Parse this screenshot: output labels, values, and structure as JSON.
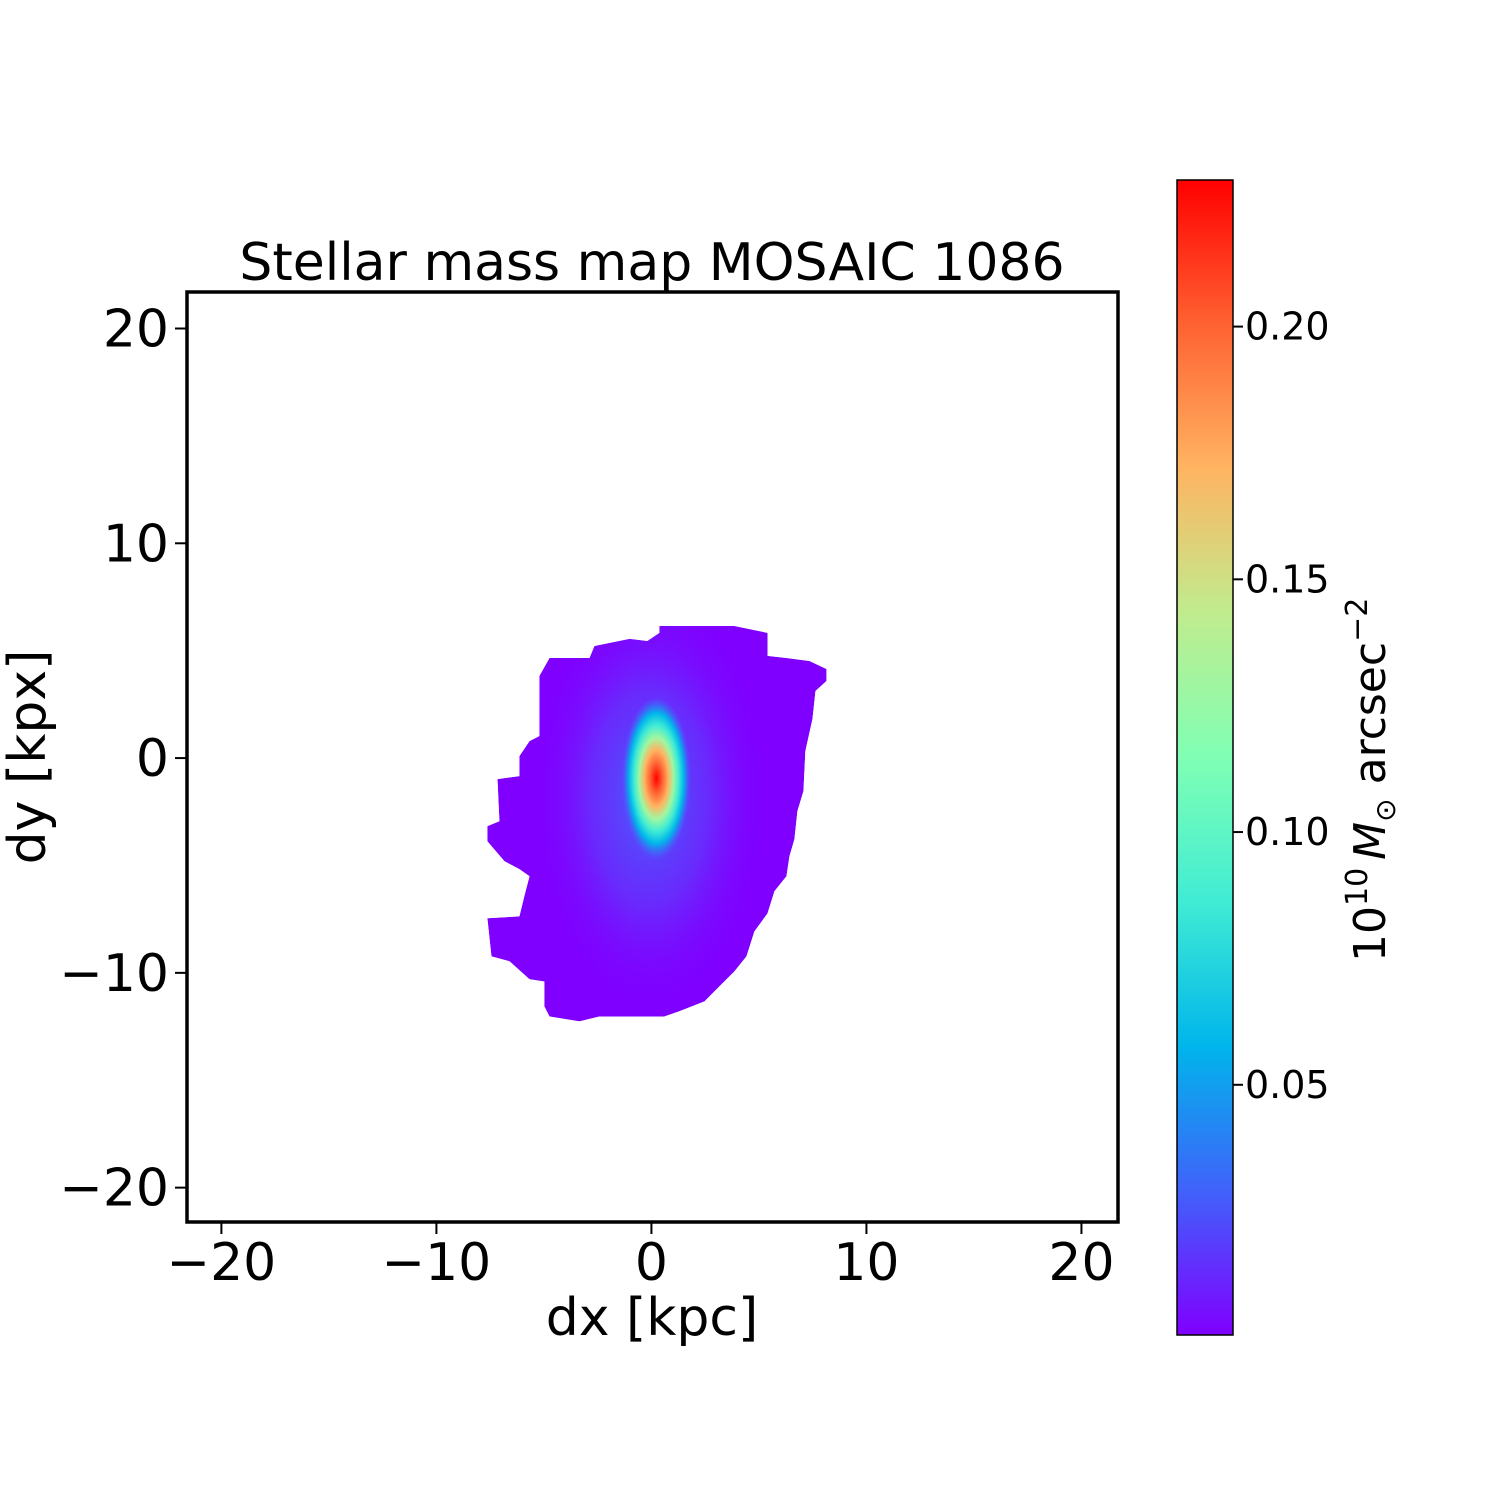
{
  "chart_data": {
    "type": "heatmap",
    "title": "Stellar mass map MOSAIC 1086",
    "xlabel": "dx [kpc]",
    "ylabel": "dy [kpx]",
    "xlim": [
      -21.6,
      21.7
    ],
    "ylim": [
      -21.6,
      21.7
    ],
    "xticks": [
      -20,
      -10,
      0,
      10,
      20
    ],
    "yticks": [
      -20,
      -10,
      0,
      10,
      20
    ],
    "xtick_labels": [
      "−20",
      "−10",
      "0",
      "10",
      "20"
    ],
    "ytick_labels": [
      "−20",
      "−10",
      "0",
      "10",
      "20"
    ],
    "colormap": "rainbow",
    "colormap_stops": [
      "#8000ff",
      "#4062fa",
      "#00b5eb",
      "#40ecd4",
      "#80ffb4",
      "#c0ec8e",
      "#ffb462",
      "#ff6232",
      "#ff0000"
    ],
    "background_color": "#ffffff",
    "colorbar": {
      "range": [
        0.0005,
        0.229
      ],
      "ticks": [
        0.05,
        0.1,
        0.15,
        0.2
      ],
      "tick_labels": [
        "0.05",
        "0.10",
        "0.15",
        "0.20"
      ],
      "label": {
        "base": "10",
        "exp1": "10",
        "unit": "M",
        "sub": "⊙",
        "rest": " arcsec",
        "exp2": "−2"
      }
    },
    "map": {
      "peak": {
        "dx": 0.23,
        "dy": -1.54,
        "value": 0.229
      },
      "min_value": 0.0005,
      "footprint_outline": [
        [
          0.37,
          6.15
        ],
        [
          3.86,
          6.15
        ],
        [
          5.4,
          5.83
        ],
        [
          5.4,
          4.76
        ],
        [
          6.28,
          4.66
        ],
        [
          7.35,
          4.52
        ],
        [
          8.14,
          4.15
        ],
        [
          8.14,
          3.59
        ],
        [
          7.63,
          3.12
        ],
        [
          7.49,
          1.82
        ],
        [
          7.16,
          0.33
        ],
        [
          7.07,
          -1.54
        ],
        [
          6.79,
          -2.47
        ],
        [
          6.65,
          -3.78
        ],
        [
          6.42,
          -4.57
        ],
        [
          6.28,
          -5.5
        ],
        [
          5.72,
          -6.2
        ],
        [
          5.4,
          -7.23
        ],
        [
          4.79,
          -8.07
        ],
        [
          4.42,
          -9.23
        ],
        [
          3.86,
          -9.93
        ],
        [
          3.16,
          -10.63
        ],
        [
          2.47,
          -11.33
        ],
        [
          1.3,
          -11.79
        ],
        [
          0.6,
          -12.03
        ],
        [
          -2.42,
          -12.03
        ],
        [
          -3.35,
          -12.26
        ],
        [
          -4.74,
          -12.03
        ],
        [
          -4.98,
          -11.56
        ],
        [
          -4.98,
          -10.4
        ],
        [
          -5.67,
          -10.3
        ],
        [
          -6.6,
          -9.46
        ],
        [
          -7.44,
          -9.23
        ],
        [
          -7.63,
          -7.46
        ],
        [
          -6.14,
          -7.37
        ],
        [
          -5.91,
          -6.43
        ],
        [
          -5.67,
          -5.5
        ],
        [
          -6.14,
          -5.17
        ],
        [
          -6.84,
          -4.8
        ],
        [
          -7.63,
          -3.87
        ],
        [
          -7.63,
          -3.17
        ],
        [
          -7.07,
          -2.94
        ],
        [
          -7.16,
          -0.98
        ],
        [
          -6.14,
          -0.84
        ],
        [
          -6.14,
          0.09
        ],
        [
          -5.67,
          0.79
        ],
        [
          -5.21,
          1.03
        ],
        [
          -5.21,
          3.82
        ],
        [
          -4.74,
          4.66
        ],
        [
          -2.88,
          4.66
        ],
        [
          -2.65,
          5.22
        ],
        [
          -1.02,
          5.55
        ],
        [
          -0.19,
          5.45
        ],
        [
          0.37,
          5.83
        ]
      ]
    }
  }
}
